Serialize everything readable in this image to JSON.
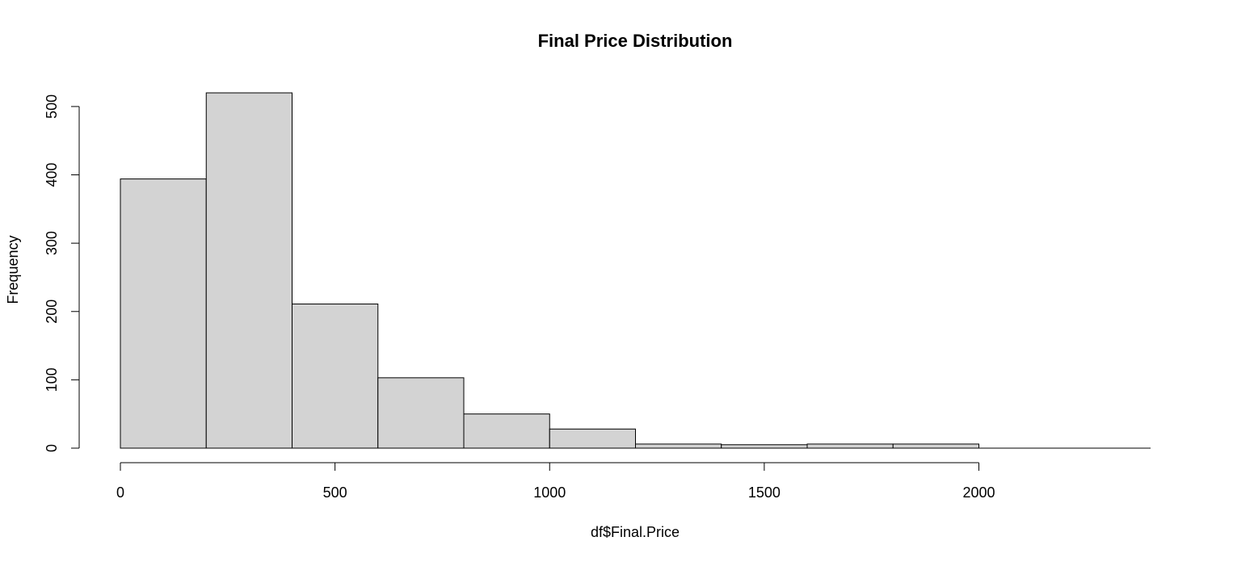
{
  "chart_data": {
    "type": "bar",
    "title": "Final Price Distribution",
    "xlabel": "df$Final.Price",
    "ylabel": "Frequency",
    "bins": [
      {
        "start": 0,
        "end": 200,
        "count": 394
      },
      {
        "start": 200,
        "end": 400,
        "count": 520
      },
      {
        "start": 400,
        "end": 600,
        "count": 211
      },
      {
        "start": 600,
        "end": 800,
        "count": 103
      },
      {
        "start": 800,
        "end": 1000,
        "count": 50
      },
      {
        "start": 1000,
        "end": 1200,
        "count": 28
      },
      {
        "start": 1200,
        "end": 1400,
        "count": 6
      },
      {
        "start": 1400,
        "end": 1600,
        "count": 5
      },
      {
        "start": 1600,
        "end": 1800,
        "count": 6
      },
      {
        "start": 1800,
        "end": 2000,
        "count": 6
      },
      {
        "start": 2000,
        "end": 2200,
        "count": 0
      },
      {
        "start": 2200,
        "end": 2400,
        "count": 0
      }
    ],
    "x_ticks": [
      0,
      500,
      1000,
      1500,
      2000
    ],
    "y_ticks": [
      0,
      100,
      200,
      300,
      400,
      500
    ],
    "xlim": [
      0,
      2400
    ],
    "ylim": [
      0,
      520
    ],
    "grid": false,
    "colors": {
      "bar_fill": "#d3d3d3",
      "bar_border": "#000000"
    }
  }
}
